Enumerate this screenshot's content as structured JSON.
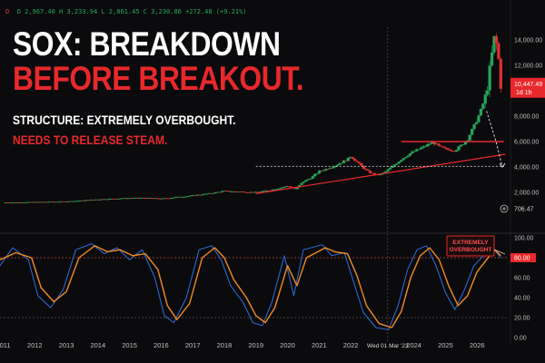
{
  "header": {
    "symbol_marker": "D",
    "ohlc": "O 2,967.40  H 3,233.94  L 2,861.45  C 3,230.86  +272.48 (+9.21%)",
    "title_line1": "SOX: BREAKDOWN",
    "title_line2": "BEFORE BREAKOUT.",
    "subtitle_line1": "STRUCTURE: EXTREMELY OVERBOUGHT.",
    "subtitle_line2": "NEEDS TO RELEASE STEAM."
  },
  "colors": {
    "up": "#26a65b",
    "down": "#e03030",
    "accent": "#e8282b",
    "blue": "#2f6fe0",
    "orange": "#f08a24"
  },
  "chart_data": [
    {
      "type": "candlestick",
      "x_years": [
        "2011",
        "2012",
        "2013",
        "2014",
        "2015",
        "2016",
        "2017",
        "2018",
        "2019",
        "2020",
        "2021",
        "2022",
        "Wed 01 Mar '23",
        "2024",
        "2025",
        "2026"
      ],
      "y_ticks": [
        "14,000.00",
        "12,000.00",
        "10,000.00",
        "8,000.00",
        "6,000.00",
        "4,000.00",
        "2,000.00"
      ],
      "ylim": [
        0,
        15000
      ],
      "price_label": "10,447.49",
      "price_timeframe": "1d 1h",
      "crosshair_label": "706.47",
      "levels": [
        {
          "name": "resistance",
          "value": 6000
        },
        {
          "name": "target",
          "value": 4050
        }
      ],
      "close_series": [
        [
          2011.0,
          1200
        ],
        [
          2011.5,
          1210
        ],
        [
          2012.0,
          1230
        ],
        [
          2012.5,
          1250
        ],
        [
          2013.0,
          1280
        ],
        [
          2013.5,
          1350
        ],
        [
          2014.0,
          1450
        ],
        [
          2014.5,
          1500
        ],
        [
          2015.0,
          1550
        ],
        [
          2015.5,
          1560
        ],
        [
          2016.0,
          1500
        ],
        [
          2016.5,
          1620
        ],
        [
          2017.0,
          1750
        ],
        [
          2017.5,
          1900
        ],
        [
          2018.0,
          2100
        ],
        [
          2018.5,
          2050
        ],
        [
          2019.0,
          2000
        ],
        [
          2019.5,
          2200
        ],
        [
          2020.0,
          2500
        ],
        [
          2020.25,
          2250
        ],
        [
          2020.5,
          2850
        ],
        [
          2020.75,
          3150
        ],
        [
          2021.0,
          3650
        ],
        [
          2021.5,
          4100
        ],
        [
          2021.9,
          4600
        ],
        [
          2022.0,
          4850
        ],
        [
          2022.5,
          3700
        ],
        [
          2022.8,
          3350
        ],
        [
          2023.0,
          3450
        ],
        [
          2023.3,
          4000
        ],
        [
          2023.6,
          4600
        ],
        [
          2023.9,
          5100
        ],
        [
          2024.2,
          5450
        ],
        [
          2024.6,
          5950
        ],
        [
          2024.8,
          5600
        ],
        [
          2025.0,
          5400
        ],
        [
          2025.3,
          5300
        ],
        [
          2025.5,
          5700
        ],
        [
          2025.7,
          6200
        ],
        [
          2025.9,
          7200
        ],
        [
          2026.1,
          8300
        ],
        [
          2026.3,
          9800
        ],
        [
          2026.45,
          12500
        ],
        [
          2026.55,
          14200
        ],
        [
          2026.65,
          13300
        ],
        [
          2026.75,
          10447
        ]
      ],
      "support_line": [
        [
          2019.0,
          1900
        ],
        [
          2026.9,
          5000
        ]
      ],
      "forecast_path": [
        [
          2026.3,
          8400
        ],
        [
          2026.6,
          6000
        ],
        [
          2026.8,
          4000
        ]
      ]
    },
    {
      "type": "line",
      "name": "stochastic",
      "y_ticks": [
        "100.00",
        "80.00",
        "60.00",
        "40.00",
        "20.00",
        "0.00"
      ],
      "ylim": [
        0,
        100
      ],
      "levels": [
        80,
        20
      ],
      "value_label": "80.00",
      "annotation": "EXTREMELY\nOVERBOUGHT",
      "series": [
        {
          "color": "#2f6fe0",
          "points": [
            [
              2010.9,
              72
            ],
            [
              2011.3,
              90
            ],
            [
              2011.8,
              78
            ],
            [
              2012.1,
              42
            ],
            [
              2012.5,
              30
            ],
            [
              2012.9,
              48
            ],
            [
              2013.3,
              88
            ],
            [
              2013.8,
              94
            ],
            [
              2014.2,
              84
            ],
            [
              2014.6,
              90
            ],
            [
              2015.0,
              78
            ],
            [
              2015.4,
              88
            ],
            [
              2015.8,
              60
            ],
            [
              2016.1,
              22
            ],
            [
              2016.4,
              15
            ],
            [
              2016.8,
              40
            ],
            [
              2017.2,
              88
            ],
            [
              2017.6,
              92
            ],
            [
              2017.9,
              78
            ],
            [
              2018.2,
              52
            ],
            [
              2018.6,
              35
            ],
            [
              2018.9,
              15
            ],
            [
              2019.2,
              12
            ],
            [
              2019.5,
              35
            ],
            [
              2019.9,
              82
            ],
            [
              2020.2,
              42
            ],
            [
              2020.5,
              88
            ],
            [
              2021.1,
              93
            ],
            [
              2021.4,
              82
            ],
            [
              2021.8,
              85
            ],
            [
              2022.1,
              55
            ],
            [
              2022.4,
              25
            ],
            [
              2022.8,
              10
            ],
            [
              2023.2,
              8
            ],
            [
              2023.5,
              32
            ],
            [
              2023.8,
              68
            ],
            [
              2024.1,
              88
            ],
            [
              2024.4,
              92
            ],
            [
              2024.7,
              72
            ],
            [
              2025.0,
              45
            ],
            [
              2025.3,
              28
            ],
            [
              2025.6,
              48
            ],
            [
              2025.9,
              72
            ],
            [
              2026.2,
              82
            ],
            [
              2026.5,
              90
            ],
            [
              2026.75,
              80
            ]
          ]
        },
        {
          "color": "#f08a24",
          "points": [
            [
              2010.9,
              78
            ],
            [
              2011.4,
              85
            ],
            [
              2011.9,
              80
            ],
            [
              2012.2,
              50
            ],
            [
              2012.6,
              36
            ],
            [
              2013.0,
              46
            ],
            [
              2013.4,
              80
            ],
            [
              2013.9,
              92
            ],
            [
              2014.3,
              86
            ],
            [
              2014.7,
              88
            ],
            [
              2015.1,
              82
            ],
            [
              2015.5,
              84
            ],
            [
              2015.9,
              68
            ],
            [
              2016.2,
              32
            ],
            [
              2016.5,
              18
            ],
            [
              2016.9,
              34
            ],
            [
              2017.3,
              80
            ],
            [
              2017.7,
              90
            ],
            [
              2018.0,
              80
            ],
            [
              2018.3,
              58
            ],
            [
              2018.7,
              40
            ],
            [
              2019.0,
              22
            ],
            [
              2019.3,
              15
            ],
            [
              2019.6,
              30
            ],
            [
              2020.0,
              72
            ],
            [
              2020.3,
              52
            ],
            [
              2020.6,
              80
            ],
            [
              2021.2,
              90
            ],
            [
              2021.5,
              86
            ],
            [
              2021.9,
              84
            ],
            [
              2022.2,
              62
            ],
            [
              2022.5,
              32
            ],
            [
              2022.9,
              14
            ],
            [
              2023.3,
              10
            ],
            [
              2023.6,
              26
            ],
            [
              2023.9,
              60
            ],
            [
              2024.2,
              82
            ],
            [
              2024.5,
              90
            ],
            [
              2024.8,
              78
            ],
            [
              2025.1,
              52
            ],
            [
              2025.4,
              32
            ],
            [
              2025.7,
              42
            ],
            [
              2026.0,
              66
            ],
            [
              2026.3,
              78
            ],
            [
              2026.55,
              88
            ],
            [
              2026.75,
              82
            ]
          ]
        }
      ]
    }
  ]
}
